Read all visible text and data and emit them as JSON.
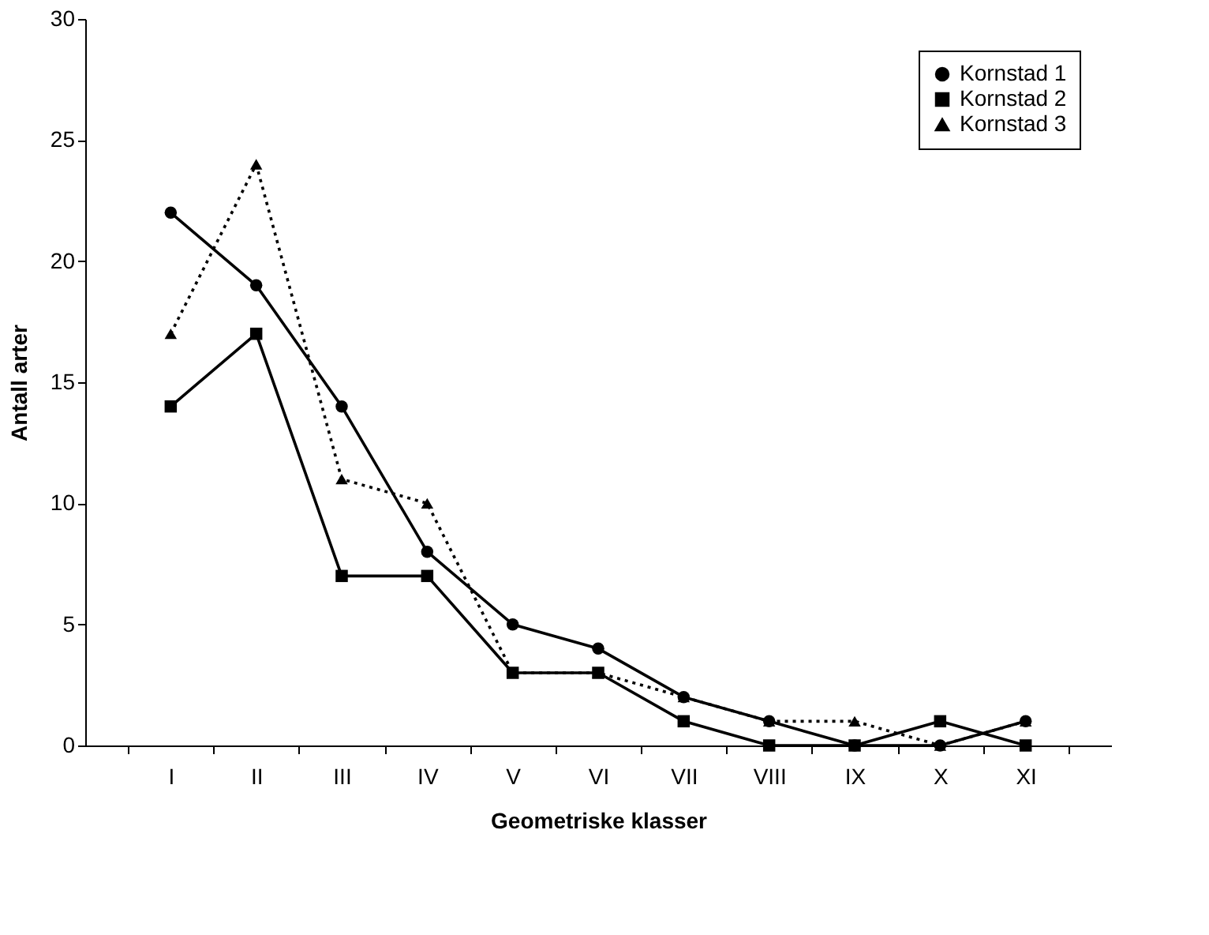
{
  "chart_data": {
    "type": "line",
    "xlabel": "Geometriske klasser",
    "ylabel": "Antall arter",
    "categories": [
      "I",
      "II",
      "III",
      "IV",
      "V",
      "VI",
      "VII",
      "VIII",
      "IX",
      "X",
      "XI"
    ],
    "series": [
      {
        "name": "Kornstad 1",
        "color": "#000000",
        "marker": "circle",
        "line_style": "solid",
        "values": [
          22,
          19,
          14,
          8,
          5,
          4,
          2,
          1,
          0,
          0,
          1
        ]
      },
      {
        "name": "Kornstad 2",
        "color": "#000000",
        "marker": "square",
        "line_style": "solid",
        "values": [
          14,
          17,
          7,
          7,
          3,
          3,
          1,
          0,
          0,
          1,
          0
        ]
      },
      {
        "name": "Kornstad 3",
        "color": "#000000",
        "marker": "triangle",
        "line_style": "dotted",
        "values": [
          17,
          24,
          11,
          10,
          3,
          3,
          2,
          1,
          1,
          0,
          1
        ]
      }
    ],
    "ylim": [
      0,
      30
    ],
    "yticks": [
      0,
      5,
      10,
      15,
      20,
      25,
      30
    ],
    "grid": false,
    "legend": "top right"
  }
}
